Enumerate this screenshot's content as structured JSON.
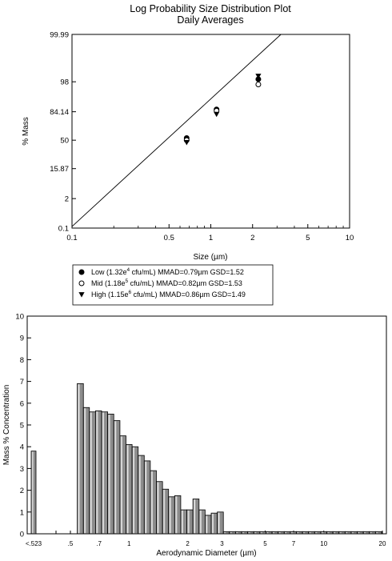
{
  "chart_data": [
    {
      "type": "scatter",
      "title": "Log Probability Size Distribution Plot",
      "subtitle": "Daily Averages",
      "xlabel": "Size (µm)",
      "ylabel": "% Mass",
      "x_scale": "log",
      "y_scale": "probability",
      "xlim": [
        0.1,
        10
      ],
      "ylim": [
        0.1,
        99.99
      ],
      "x_ticks": [
        0.1,
        0.5,
        1,
        2,
        5,
        10
      ],
      "x_tick_labels": [
        "0.1",
        "0.5",
        "1",
        "2",
        "5",
        "10"
      ],
      "y_ticks": [
        0.1,
        2,
        15.87,
        50,
        84.14,
        98,
        99.99
      ],
      "y_tick_labels": [
        "0.1",
        "2",
        "15.87",
        "50",
        "84.14",
        "98",
        "99.99"
      ],
      "grid": false,
      "legend_position": "bottom",
      "series": [
        {
          "name": "Low (1.32e4 cfu/mL) MMAD=0.79µm GSD=1.52",
          "name_parts": [
            "Low (1.32e",
            "4",
            " cfu/mL) MMAD=0.79µm GSD=1.52"
          ],
          "marker": "filled-circle",
          "x": [
            0.67,
            1.1,
            2.2
          ],
          "y": [
            53,
            86,
            98.4
          ]
        },
        {
          "name": "Mid (1.18e5 cfu/mL) MMAD=0.82µm GSD=1.53",
          "name_parts": [
            "Mid (1.18e",
            "5",
            " cfu/mL) MMAD=0.82µm GSD=1.53"
          ],
          "marker": "open-circle",
          "x": [
            0.67,
            1.1,
            2.2
          ],
          "y": [
            50,
            85,
            97.5
          ]
        },
        {
          "name": "High (1.15e6 cfu/mL) MMAD=0.86µm GSD=1.49",
          "name_parts": [
            "High (1.15e",
            "6",
            " cfu/mL) MMAD=0.86µm GSD=1.49"
          ],
          "marker": "filled-triangle-down",
          "x": [
            0.67,
            1.1,
            2.2
          ],
          "y": [
            47,
            82,
            98.8
          ]
        }
      ],
      "fit_line": {
        "x": [
          0.1,
          3.2
        ],
        "y": [
          0.12,
          99.99
        ]
      }
    },
    {
      "type": "bar",
      "xlabel": "Aerodynamic Diameter (µm)",
      "ylabel": "Mass % Concentration",
      "x_scale": "log",
      "xlim": [
        0.5,
        20
      ],
      "ylim": [
        0,
        10
      ],
      "y_ticks": [
        0,
        1,
        2,
        3,
        4,
        5,
        6,
        7,
        8,
        9,
        10
      ],
      "x_tick_labels": [
        "<.523",
        ".5",
        ".7",
        "1",
        "2",
        "3",
        "5",
        "7",
        "10",
        "20"
      ],
      "x_tick_values": [
        null,
        0.5,
        0.7,
        1,
        2,
        3,
        5,
        7,
        10,
        20
      ],
      "grid": false,
      "undersize_bin": {
        "label": "<.523",
        "value": 3.8
      },
      "bins": {
        "lower_bounds": [
          0.542,
          0.583,
          0.626,
          0.673,
          0.723,
          0.777,
          0.835,
          0.898,
          0.965,
          1.037,
          1.114,
          1.197,
          1.286,
          1.382,
          1.486,
          1.596,
          1.715,
          1.843,
          1.981,
          2.129,
          2.288,
          2.458,
          2.642,
          2.839,
          3.051,
          3.278,
          3.523,
          3.786,
          4.068,
          4.371,
          4.698,
          5.048,
          5.425,
          5.829,
          6.264,
          6.732,
          7.234,
          7.774,
          8.354,
          8.977,
          9.647,
          10.37,
          11.14,
          11.97,
          12.86,
          13.82,
          14.86,
          15.96,
          17.15,
          18.43
        ],
        "values": [
          6.9,
          5.8,
          5.6,
          5.65,
          5.6,
          5.5,
          5.2,
          4.5,
          4.1,
          4.0,
          3.6,
          3.35,
          2.9,
          2.4,
          2.05,
          1.7,
          1.75,
          1.1,
          1.1,
          1.6,
          1.1,
          0.85,
          0.95,
          1.0,
          0.1,
          0.1,
          0.1,
          0.1,
          0.1,
          0.1,
          0.1,
          0.1,
          0.1,
          0.1,
          0.1,
          0.1,
          0.1,
          0.1,
          0.1,
          0.1,
          0.1,
          0.1,
          0.1,
          0.1,
          0.1,
          0.1,
          0.1,
          0.1,
          0.1,
          0.1
        ]
      },
      "colors": {
        "bar": "#8c8c8c",
        "bar_highlight": "#d6d6d6",
        "bar_edge": "#000000"
      }
    }
  ]
}
